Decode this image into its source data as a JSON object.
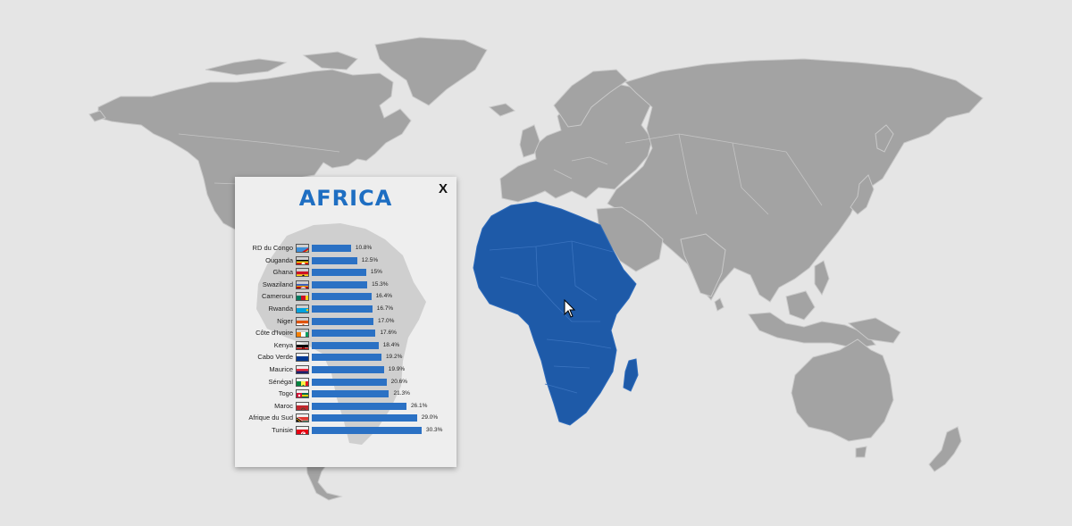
{
  "popup": {
    "title": "AFRICA",
    "close_label": "X",
    "bar_color": "#2b71c4",
    "title_color": "#1e6ec2",
    "rows": [
      {
        "country": "RD du Congo",
        "value": 10.8,
        "value_label": "10.8%",
        "flag": "drc-flag"
      },
      {
        "country": "Ouganda",
        "value": 12.5,
        "value_label": "12.5%",
        "flag": "uganda-flag"
      },
      {
        "country": "Ghana",
        "value": 15,
        "value_label": "15%",
        "flag": "ghana-flag"
      },
      {
        "country": "Swaziland",
        "value": 15.3,
        "value_label": "15.3%",
        "flag": "swaziland-flag"
      },
      {
        "country": "Cameroun",
        "value": 16.4,
        "value_label": "16.4%",
        "flag": "cameroon-flag"
      },
      {
        "country": "Rwanda",
        "value": 16.7,
        "value_label": "16.7%",
        "flag": "rwanda-flag"
      },
      {
        "country": "Niger",
        "value": 17.0,
        "value_label": "17.0%",
        "flag": "niger-flag"
      },
      {
        "country": "Côte d'Ivoire",
        "value": 17.6,
        "value_label": "17.6%",
        "flag": "ivory-coast-flag"
      },
      {
        "country": "Kenya",
        "value": 18.4,
        "value_label": "18.4%",
        "flag": "kenya-flag"
      },
      {
        "country": "Cabo Verde",
        "value": 19.2,
        "value_label": "19.2%",
        "flag": "cabo-verde-flag"
      },
      {
        "country": "Maurice",
        "value": 19.9,
        "value_label": "19.9%",
        "flag": "mauritius-flag"
      },
      {
        "country": "Sénégal",
        "value": 20.6,
        "value_label": "20.6%",
        "flag": "senegal-flag"
      },
      {
        "country": "Togo",
        "value": 21.3,
        "value_label": "21.3%",
        "flag": "togo-flag"
      },
      {
        "country": "Maroc",
        "value": 26.1,
        "value_label": "26.1%",
        "flag": "morocco-flag"
      },
      {
        "country": "Afrique du Sud",
        "value": 29.0,
        "value_label": "29.0%",
        "flag": "south-africa-flag"
      },
      {
        "country": "Tunisie",
        "value": 30.3,
        "value_label": "30.3%",
        "flag": "tunisia-flag"
      }
    ]
  },
  "map": {
    "highlighted_region": "Africa",
    "land_color": "#a3a3a3",
    "highlight_color": "#1e5aa8",
    "background_color": "#e5e5e5"
  },
  "cursor": {
    "icon": "arrow-cursor-icon"
  }
}
